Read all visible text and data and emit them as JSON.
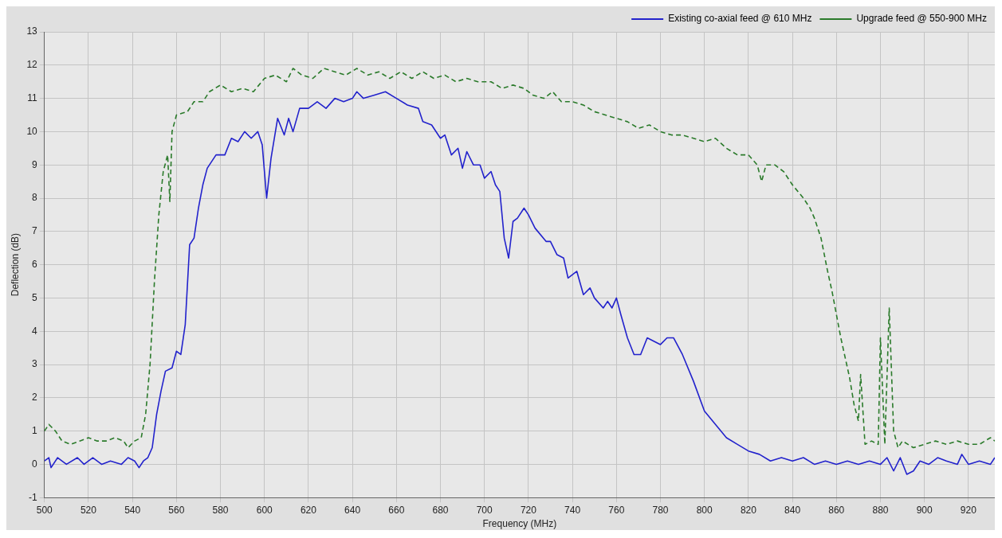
{
  "chart_data": {
    "type": "line",
    "xlabel": "Frequency (MHz)",
    "ylabel": "Deflection (dB)",
    "xlim": [
      500,
      932
    ],
    "xticks": [
      500,
      520,
      540,
      560,
      580,
      600,
      620,
      640,
      660,
      680,
      700,
      720,
      740,
      760,
      780,
      800,
      820,
      840,
      860,
      880,
      900,
      920
    ],
    "ylim": [
      -1,
      13
    ],
    "yticks": [
      -1,
      0,
      1,
      2,
      3,
      4,
      5,
      6,
      7,
      8,
      9,
      10,
      11,
      12,
      13
    ],
    "grid": true,
    "legend": "top right",
    "marker": "none",
    "series": [
      {
        "name": "Existing co-axial feed @ 610 MHz",
        "color": "#2222cc",
        "line_style": "solid",
        "x": [
          500,
          502,
          503,
          506,
          510,
          515,
          518,
          522,
          526,
          530,
          535,
          538,
          541,
          543,
          545,
          547,
          549,
          551,
          553,
          555,
          558,
          560,
          562,
          564,
          566,
          568,
          570,
          572,
          574,
          578,
          582,
          585,
          588,
          591,
          594,
          597,
          599,
          601,
          603,
          606,
          609,
          611,
          613,
          616,
          620,
          624,
          628,
          632,
          636,
          640,
          642,
          645,
          650,
          655,
          660,
          665,
          670,
          672,
          676,
          680,
          682,
          685,
          688,
          690,
          692,
          695,
          698,
          700,
          703,
          705,
          707,
          709,
          711,
          713,
          715,
          718,
          720,
          723,
          728,
          730,
          733,
          736,
          738,
          742,
          745,
          748,
          750,
          754,
          756,
          758,
          760,
          762,
          765,
          768,
          771,
          774,
          777,
          780,
          783,
          786,
          790,
          795,
          800,
          805,
          810,
          815,
          820,
          825,
          830,
          835,
          840,
          845,
          850,
          855,
          860,
          865,
          870,
          875,
          880,
          883,
          886,
          889,
          892,
          895,
          898,
          902,
          906,
          910,
          915,
          917,
          920,
          925,
          930,
          932
        ],
        "values": [
          0.1,
          0.2,
          -0.1,
          0.2,
          0,
          0.2,
          0,
          0.2,
          0,
          0.1,
          0,
          0.2,
          0.1,
          -0.1,
          0.1,
          0.2,
          0.5,
          1.5,
          2.2,
          2.8,
          2.9,
          3.4,
          3.3,
          4.2,
          6.6,
          6.8,
          7.7,
          8.4,
          8.9,
          9.3,
          9.3,
          9.8,
          9.7,
          10,
          9.8,
          10,
          9.6,
          8,
          9.2,
          10.4,
          9.9,
          10.4,
          10,
          10.7,
          10.7,
          10.9,
          10.7,
          11,
          10.9,
          11,
          11.2,
          11,
          11.1,
          11.2,
          11,
          10.8,
          10.7,
          10.3,
          10.2,
          9.8,
          9.9,
          9.3,
          9.5,
          8.9,
          9.4,
          9,
          9,
          8.6,
          8.8,
          8.4,
          8.2,
          6.8,
          6.2,
          7.3,
          7.4,
          7.7,
          7.5,
          7.1,
          6.7,
          6.7,
          6.3,
          6.2,
          5.6,
          5.8,
          5.1,
          5.3,
          5,
          4.7,
          4.9,
          4.7,
          5,
          4.5,
          3.8,
          3.3,
          3.3,
          3.8,
          3.7,
          3.6,
          3.8,
          3.8,
          3.3,
          2.5,
          1.6,
          1.2,
          0.8,
          0.6,
          0.4,
          0.3,
          0.1,
          0.2,
          0.1,
          0.2,
          0,
          0.1,
          0,
          0.1,
          0,
          0.1,
          0,
          0.2,
          -0.2,
          0.2,
          -0.3,
          -0.2,
          0.1,
          0,
          0.2,
          0.1,
          0,
          0.3,
          0,
          0.1,
          0,
          0.2
        ]
      },
      {
        "name": "Upgrade feed @ 550-900 MHz",
        "color": "#2a7a2a",
        "line_style": "dashed",
        "x": [
          500,
          502,
          505,
          508,
          512,
          516,
          520,
          524,
          528,
          532,
          536,
          538,
          541,
          544,
          546,
          548,
          550,
          552,
          554,
          556,
          557,
          558,
          560,
          565,
          568,
          572,
          575,
          580,
          585,
          590,
          595,
          600,
          605,
          610,
          613,
          617,
          622,
          627,
          632,
          637,
          642,
          647,
          652,
          657,
          662,
          667,
          672,
          677,
          682,
          687,
          692,
          697,
          703,
          708,
          713,
          718,
          722,
          727,
          731,
          735,
          740,
          745,
          750,
          755,
          760,
          765,
          770,
          775,
          780,
          785,
          790,
          795,
          800,
          805,
          810,
          815,
          820,
          824,
          826,
          828,
          832,
          836,
          840,
          845,
          848,
          850,
          853,
          856,
          858,
          862,
          866,
          868,
          870,
          871,
          873,
          876,
          879,
          880,
          882,
          884,
          886,
          888,
          890,
          895,
          900,
          905,
          910,
          915,
          920,
          925,
          930,
          932
        ],
        "values": [
          1,
          1.2,
          1,
          0.7,
          0.6,
          0.7,
          0.8,
          0.7,
          0.7,
          0.8,
          0.7,
          0.5,
          0.7,
          0.8,
          1.5,
          3,
          5.5,
          7.5,
          8.8,
          9.3,
          7.9,
          10,
          10.5,
          10.6,
          10.9,
          10.9,
          11.2,
          11.4,
          11.2,
          11.3,
          11.2,
          11.6,
          11.7,
          11.5,
          11.9,
          11.7,
          11.6,
          11.9,
          11.8,
          11.7,
          11.9,
          11.7,
          11.8,
          11.6,
          11.8,
          11.6,
          11.8,
          11.6,
          11.7,
          11.5,
          11.6,
          11.5,
          11.5,
          11.3,
          11.4,
          11.3,
          11.1,
          11,
          11.2,
          10.9,
          10.9,
          10.8,
          10.6,
          10.5,
          10.4,
          10.3,
          10.1,
          10.2,
          10,
          9.9,
          9.9,
          9.8,
          9.7,
          9.8,
          9.5,
          9.3,
          9.3,
          9,
          8.5,
          9,
          9,
          8.8,
          8.4,
          8,
          7.7,
          7.4,
          6.8,
          5.8,
          5.2,
          3.8,
          2.6,
          1.8,
          1.3,
          2.7,
          0.6,
          0.7,
          0.6,
          3.8,
          0.6,
          4.7,
          1,
          0.5,
          0.7,
          0.5,
          0.6,
          0.7,
          0.6,
          0.7,
          0.6,
          0.6,
          0.8,
          0.7
        ]
      }
    ]
  }
}
